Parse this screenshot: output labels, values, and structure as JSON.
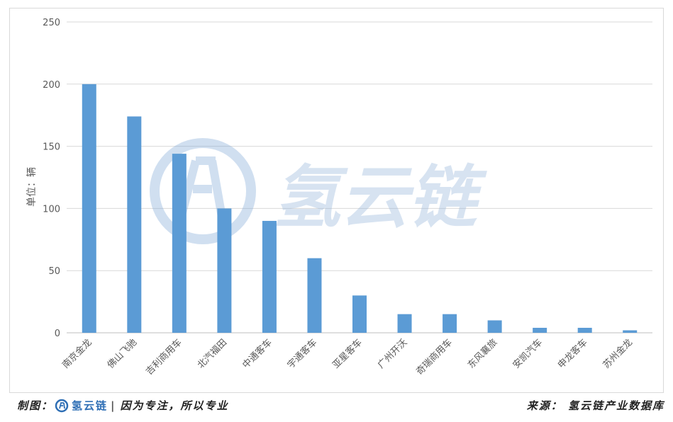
{
  "chart_data": {
    "type": "bar",
    "categories": [
      "南京金龙",
      "佛山飞驰",
      "吉利商用车",
      "北汽福田",
      "中通客车",
      "宇通客车",
      "亚星客车",
      "广州开沃",
      "奇瑞商用车",
      "东风襄旅",
      "安凯汽车",
      "申龙客车",
      "苏州金龙"
    ],
    "values": [
      200,
      174,
      144,
      100,
      90,
      60,
      30,
      15,
      15,
      10,
      4,
      4,
      2
    ],
    "ylabel": "单位：辆",
    "ylim": [
      0,
      250
    ],
    "yticks": [
      "0",
      "50",
      "100",
      "150",
      "200",
      "250"
    ],
    "grid": true,
    "bar_color": "#5b9bd5"
  },
  "watermark": {
    "text": "氢云链"
  },
  "footer": {
    "left_prefix": "制图：",
    "brand": "氢云链",
    "separator": "|",
    "slogan": "因为专注，所以专业",
    "right": "来源： 氢云链产业数据库"
  }
}
